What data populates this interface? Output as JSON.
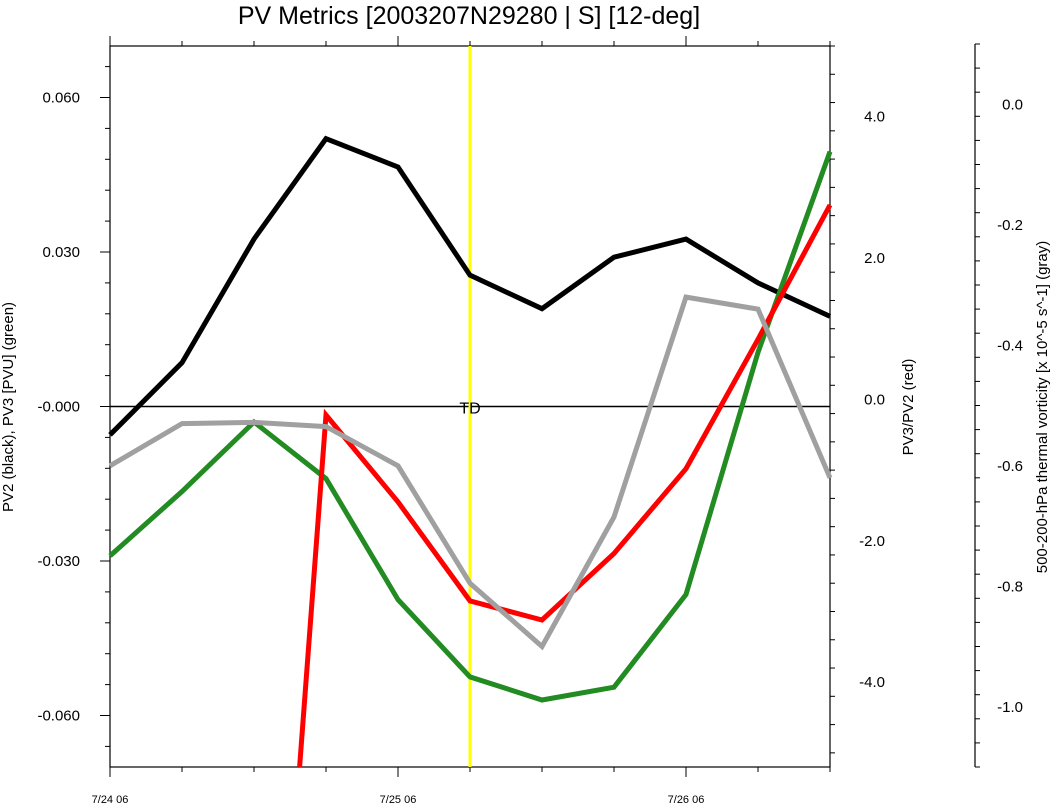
{
  "chart_data": {
    "type": "line",
    "title": "PV Metrics [2003207N29280 | S] [12-deg]",
    "x_ticks": [
      "7/24 06",
      "7/25 06",
      "7/26 06"
    ],
    "x_hours": [
      0,
      6,
      12,
      18,
      24,
      30,
      36,
      42,
      48,
      54,
      60
    ],
    "left_axis": {
      "label": "PV2 (black), PV3 [PVU] (green)",
      "ylim": [
        -0.07,
        0.07
      ],
      "tick_values": [
        0.06,
        0.03,
        0.0,
        -0.03,
        -0.06
      ],
      "tick_labels": [
        "0.060",
        "0.030",
        "-0.000",
        "-0.030",
        "-0.060"
      ]
    },
    "middle_axis": {
      "label": "PV3/PV2 (red)",
      "ylim": [
        -5.2,
        5.0
      ],
      "tick_values": [
        4.0,
        2.0,
        0.0,
        -2.0,
        -4.0
      ],
      "tick_labels": [
        "4.0",
        "2.0",
        "0.0",
        "-2.0",
        "-4.0"
      ]
    },
    "right_axis": {
      "label": "500-200-hPa thermal vorticity [x 10^-5 s^-1] (gray)",
      "ylim": [
        -1.1,
        0.1
      ],
      "tick_values": [
        0.0,
        -0.2,
        -0.4,
        -0.6,
        -0.8,
        -1.0
      ],
      "tick_labels": [
        "0.0",
        "-0.2",
        "-0.4",
        "-0.6",
        "-0.8",
        "-1.0"
      ]
    },
    "series": [
      {
        "axis": "left",
        "color": "#000000",
        "points": [
          [
            0,
            -0.0055
          ],
          [
            6,
            0.0085
          ],
          [
            12,
            0.0325
          ],
          [
            18,
            0.052
          ],
          [
            24,
            0.0465
          ],
          [
            30,
            0.0255
          ],
          [
            36,
            0.019
          ],
          [
            42,
            0.029
          ],
          [
            48,
            0.0325
          ],
          [
            54,
            0.024
          ],
          [
            60,
            0.0175
          ]
        ]
      },
      {
        "axis": "left",
        "color": "#228B22",
        "points": [
          [
            0,
            -0.029
          ],
          [
            6,
            -0.0165
          ],
          [
            12,
            -0.003
          ],
          [
            18,
            -0.014
          ],
          [
            24,
            -0.0375
          ],
          [
            30,
            -0.0525
          ],
          [
            36,
            -0.057
          ],
          [
            42,
            -0.0545
          ],
          [
            48,
            -0.0365
          ],
          [
            54,
            0.0105
          ],
          [
            60,
            0.0495
          ]
        ]
      },
      {
        "axis": "middle",
        "color": "#FF0000",
        "points": [
          [
            15.8,
            -5.2
          ],
          [
            18,
            -0.22
          ],
          [
            24,
            -1.45
          ],
          [
            30,
            -2.85
          ],
          [
            36,
            -3.12
          ],
          [
            42,
            -2.18
          ],
          [
            48,
            -0.98
          ],
          [
            54,
            0.85
          ],
          [
            60,
            2.75
          ]
        ]
      },
      {
        "axis": "right",
        "color": "#A0A0A0",
        "points": [
          [
            0,
            -0.6
          ],
          [
            6,
            -0.53
          ],
          [
            12,
            -0.528
          ],
          [
            18,
            -0.535
          ],
          [
            24,
            -0.6
          ],
          [
            30,
            -0.795
          ],
          [
            36,
            -0.9
          ],
          [
            42,
            -0.685
          ],
          [
            48,
            -0.32
          ],
          [
            54,
            -0.34
          ],
          [
            60,
            -0.62
          ]
        ]
      }
    ],
    "annotations": {
      "vertical_line": {
        "x_hour": 30,
        "color": "#FFFF00"
      },
      "zero_line": {
        "axis": "left",
        "value": 0.0,
        "label": "TD"
      }
    }
  }
}
